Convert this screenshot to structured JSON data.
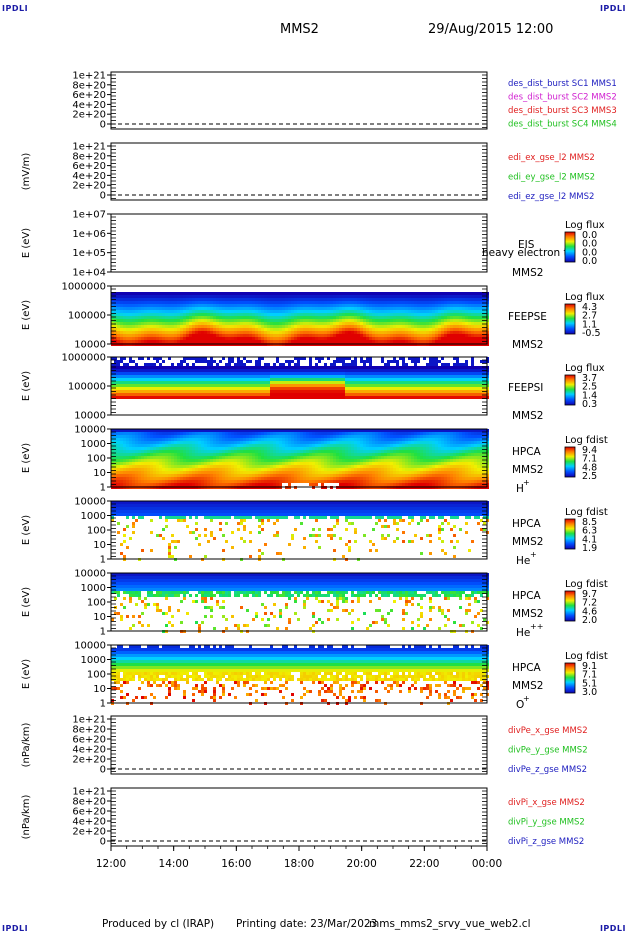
{
  "header": {
    "corner_label": "IPDLI",
    "spacecraft": "MMS2",
    "datetime": "29/Aug/2015 12:00"
  },
  "footer": {
    "produced_by": "Produced by cl (IRAP)",
    "printing_date": "Printing date: 23/Mar/2023",
    "filename": "mms_mms2_srvy_vue_web2.cl"
  },
  "chart_data": [
    {
      "type": "line",
      "id": "p1",
      "ylabel": "",
      "yticks": [
        "1e+21",
        "8e+20",
        "6e+20",
        "4e+20",
        "2e+20",
        "0"
      ],
      "ylim": [
        0,
        1e+21
      ],
      "dashed_zero": true,
      "series": [
        {
          "name": "des_dist_burst SC1 MMS1",
          "color": "#2020c0"
        },
        {
          "name": "des_dist_burst SC2 MMS2",
          "color": "#d020d0"
        },
        {
          "name": "des_dist_burst SC3 MMS3",
          "color": "#e02020"
        },
        {
          "name": "des_dist_burst SC4 MMS4",
          "color": "#20c020"
        }
      ]
    },
    {
      "type": "line",
      "id": "p2",
      "ylabel": "(mV/m)",
      "yticks": [
        "1e+21",
        "8e+20",
        "6e+20",
        "4e+20",
        "2e+20",
        "0"
      ],
      "ylim": [
        0,
        1e+21
      ],
      "dashed_zero": true,
      "series": [
        {
          "name": "edi_ex_gse_l2 MMS2",
          "color": "#e02020"
        },
        {
          "name": "edi_ey_gse_l2 MMS2",
          "color": "#20c020"
        },
        {
          "name": "edi_ez_gse_l2 MMS2",
          "color": "#2020c0"
        }
      ]
    },
    {
      "type": "heatmap",
      "id": "p3",
      "ylabel": "E (eV)",
      "yticks": [
        "1e+07",
        "1e+06",
        "1e+05",
        "1e+04"
      ],
      "yscale": "log",
      "ylim": [
        10000,
        10000000
      ],
      "instrument": "EIS",
      "species": "heavy electron to",
      "spacecraft": "MMS2",
      "colorbar_title": "Log flux",
      "colorbar_ticks": [
        "0.0",
        "0.0",
        "0.0",
        "0.0"
      ],
      "empty": true
    },
    {
      "type": "heatmap",
      "id": "p4",
      "ylabel": "E (eV)",
      "yticks": [
        "1000000",
        "100000",
        "10000"
      ],
      "yscale": "log",
      "ylim": [
        10000,
        1000000
      ],
      "instrument": "FEEPSE",
      "species": "",
      "spacecraft": "MMS2",
      "colorbar_title": "Log flux",
      "colorbar_ticks": [
        "4.3",
        "2.7",
        "1.1",
        "-0.5"
      ]
    },
    {
      "type": "heatmap",
      "id": "p5",
      "ylabel": "E (eV)",
      "yticks": [
        "1000000",
        "100000",
        "10000"
      ],
      "yscale": "log",
      "ylim": [
        10000,
        1000000
      ],
      "instrument": "FEEPSI",
      "species": "",
      "spacecraft": "MMS2",
      "colorbar_title": "Log flux",
      "colorbar_ticks": [
        "3.7",
        "2.5",
        "1.4",
        "0.3"
      ]
    },
    {
      "type": "heatmap",
      "id": "p6",
      "ylabel": "E (eV)",
      "yticks": [
        "10000",
        "1000",
        "100",
        "10",
        "1"
      ],
      "yscale": "log",
      "ylim": [
        1,
        30000
      ],
      "instrument": "HPCA",
      "species": "H",
      "species_charge": "+",
      "spacecraft": "MMS2",
      "colorbar_title": "Log fdist",
      "colorbar_ticks": [
        "9.4",
        "7.1",
        "4.8",
        "2.5"
      ]
    },
    {
      "type": "heatmap",
      "id": "p7",
      "ylabel": "E (eV)",
      "yticks": [
        "10000",
        "1000",
        "100",
        "10",
        "1"
      ],
      "yscale": "log",
      "ylim": [
        1,
        30000
      ],
      "instrument": "HPCA",
      "species": "He",
      "species_charge": "+",
      "spacecraft": "MMS2",
      "colorbar_title": "Log fdist",
      "colorbar_ticks": [
        "8.5",
        "6.3",
        "4.1",
        "1.9"
      ]
    },
    {
      "type": "heatmap",
      "id": "p8",
      "ylabel": "E (eV)",
      "yticks": [
        "10000",
        "1000",
        "100",
        "10",
        "1"
      ],
      "yscale": "log",
      "ylim": [
        1,
        30000
      ],
      "instrument": "HPCA",
      "species": "He",
      "species_charge": "++",
      "spacecraft": "MMS2",
      "colorbar_title": "Log fdist",
      "colorbar_ticks": [
        "9.7",
        "7.2",
        "4.6",
        "2.0"
      ]
    },
    {
      "type": "heatmap",
      "id": "p9",
      "ylabel": "E (eV)",
      "yticks": [
        "10000",
        "1000",
        "100",
        "10",
        "1"
      ],
      "yscale": "log",
      "ylim": [
        1,
        30000
      ],
      "instrument": "HPCA",
      "species": "O",
      "species_charge": "+",
      "spacecraft": "MMS2",
      "colorbar_title": "Log fdist",
      "colorbar_ticks": [
        "9.1",
        "7.1",
        "5.1",
        "3.0"
      ]
    },
    {
      "type": "line",
      "id": "p10",
      "ylabel": "(nPa/km)",
      "yticks": [
        "1e+21",
        "8e+20",
        "6e+20",
        "4e+20",
        "2e+20",
        "0"
      ],
      "ylim": [
        0,
        1e+21
      ],
      "dashed_zero": true,
      "series": [
        {
          "name": "divPe_x_gse MMS2",
          "color": "#e02020"
        },
        {
          "name": "divPe_y_gse MMS2",
          "color": "#20c020"
        },
        {
          "name": "divPe_z_gse MMS2",
          "color": "#2020c0"
        }
      ]
    },
    {
      "type": "line",
      "id": "p11",
      "ylabel": "(nPa/km)",
      "yticks": [
        "1e+21",
        "8e+20",
        "6e+20",
        "4e+20",
        "2e+20",
        "0"
      ],
      "ylim": [
        0,
        1e+21
      ],
      "dashed_zero": true,
      "series": [
        {
          "name": "divPi_x_gse MMS2",
          "color": "#e02020"
        },
        {
          "name": "divPi_y_gse MMS2",
          "color": "#20c020"
        },
        {
          "name": "divPi_z_gse MMS2",
          "color": "#2020c0"
        }
      ]
    }
  ],
  "time_axis": {
    "ticks": [
      "12:00",
      "14:00",
      "16:00",
      "18:00",
      "20:00",
      "22:00",
      "00:00"
    ],
    "range": [
      "12:00",
      "00:00"
    ]
  }
}
